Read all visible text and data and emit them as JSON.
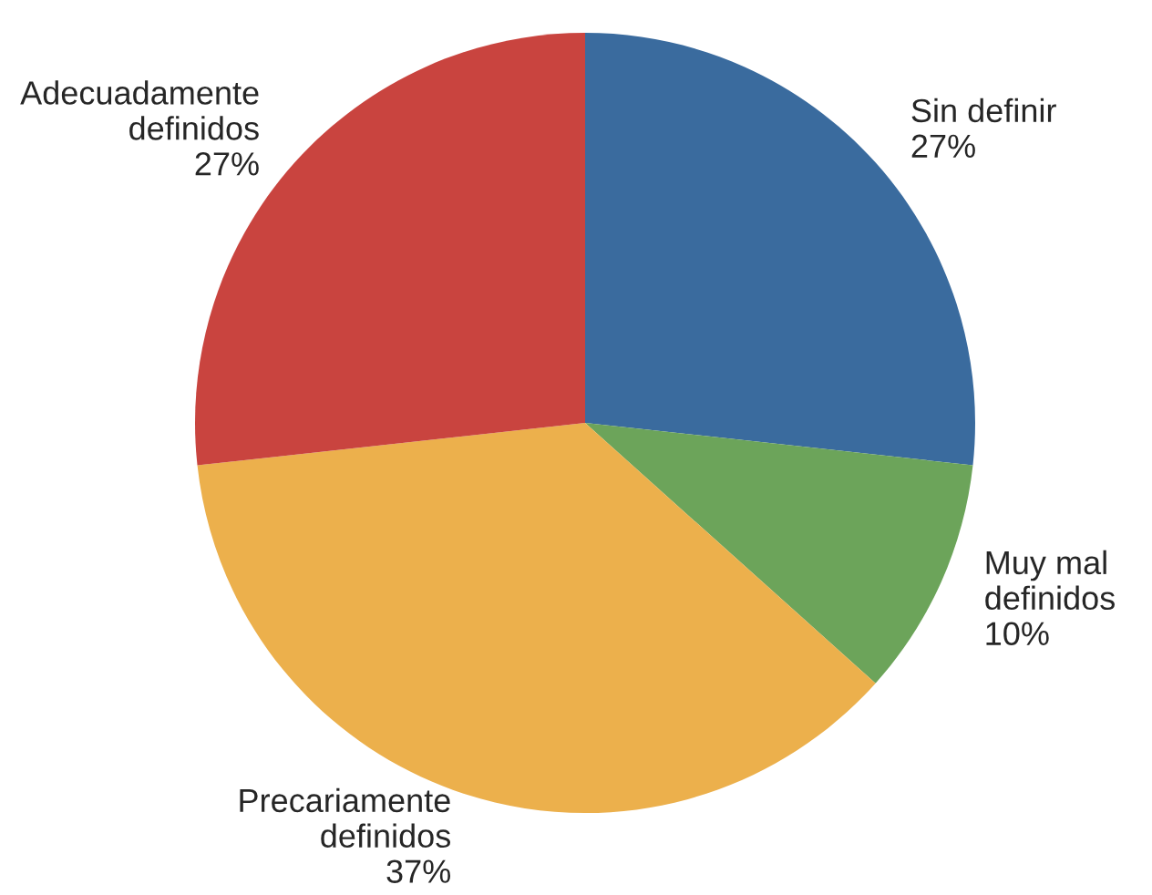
{
  "chart_data": {
    "type": "pie",
    "categories": [
      "Sin definir",
      "Muy mal\ndefinidos",
      "Precariamente\ndefinidos",
      "Adecuadamente\ndefinidos"
    ],
    "values": [
      27,
      10,
      37,
      27
    ],
    "value_labels": [
      "27%",
      "10%",
      "37%",
      "27%"
    ],
    "colors": [
      "#3a6b9e",
      "#6ca45a",
      "#ecb04c",
      "#c9443f"
    ],
    "legend": false
  }
}
